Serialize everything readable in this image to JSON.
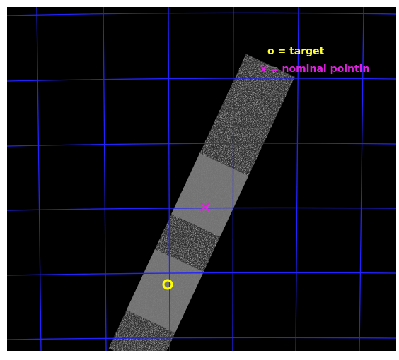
{
  "legend": {
    "target": "o = target",
    "nominal": "x = nominal pointin"
  }
}
